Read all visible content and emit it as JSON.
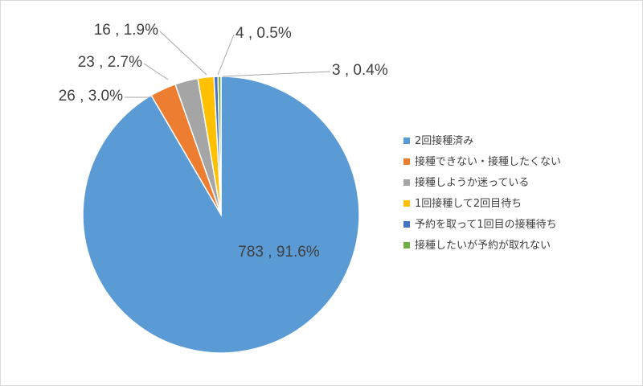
{
  "chart_data": {
    "type": "pie",
    "title": "",
    "legend_position": "right",
    "slices": [
      {
        "label": "2回接種済み",
        "value": 783,
        "percent": "91.6%",
        "color": "#5b9bd5"
      },
      {
        "label": "接種できない・接種したくない",
        "value": 26,
        "percent": "3.0%",
        "color": "#ed7d31"
      },
      {
        "label": "接種しようか迷っている",
        "value": 23,
        "percent": "2.7%",
        "color": "#a5a5a5"
      },
      {
        "label": "1回接種して2回目待ち",
        "value": 16,
        "percent": "1.9%",
        "color": "#ffc000"
      },
      {
        "label": "予約を取って1回目の接種待ち",
        "value": 4,
        "percent": "0.5%",
        "color": "#4472c4"
      },
      {
        "label": "接種したいが予約が取れない",
        "value": 3,
        "percent": "0.4%",
        "color": "#70ad47"
      }
    ],
    "data_labels": [
      "783 , 91.6%",
      "26 , 3.0%",
      "23 , 2.7%",
      "16 , 1.9%",
      "4 , 0.5%",
      "3 , 0.4%"
    ]
  }
}
